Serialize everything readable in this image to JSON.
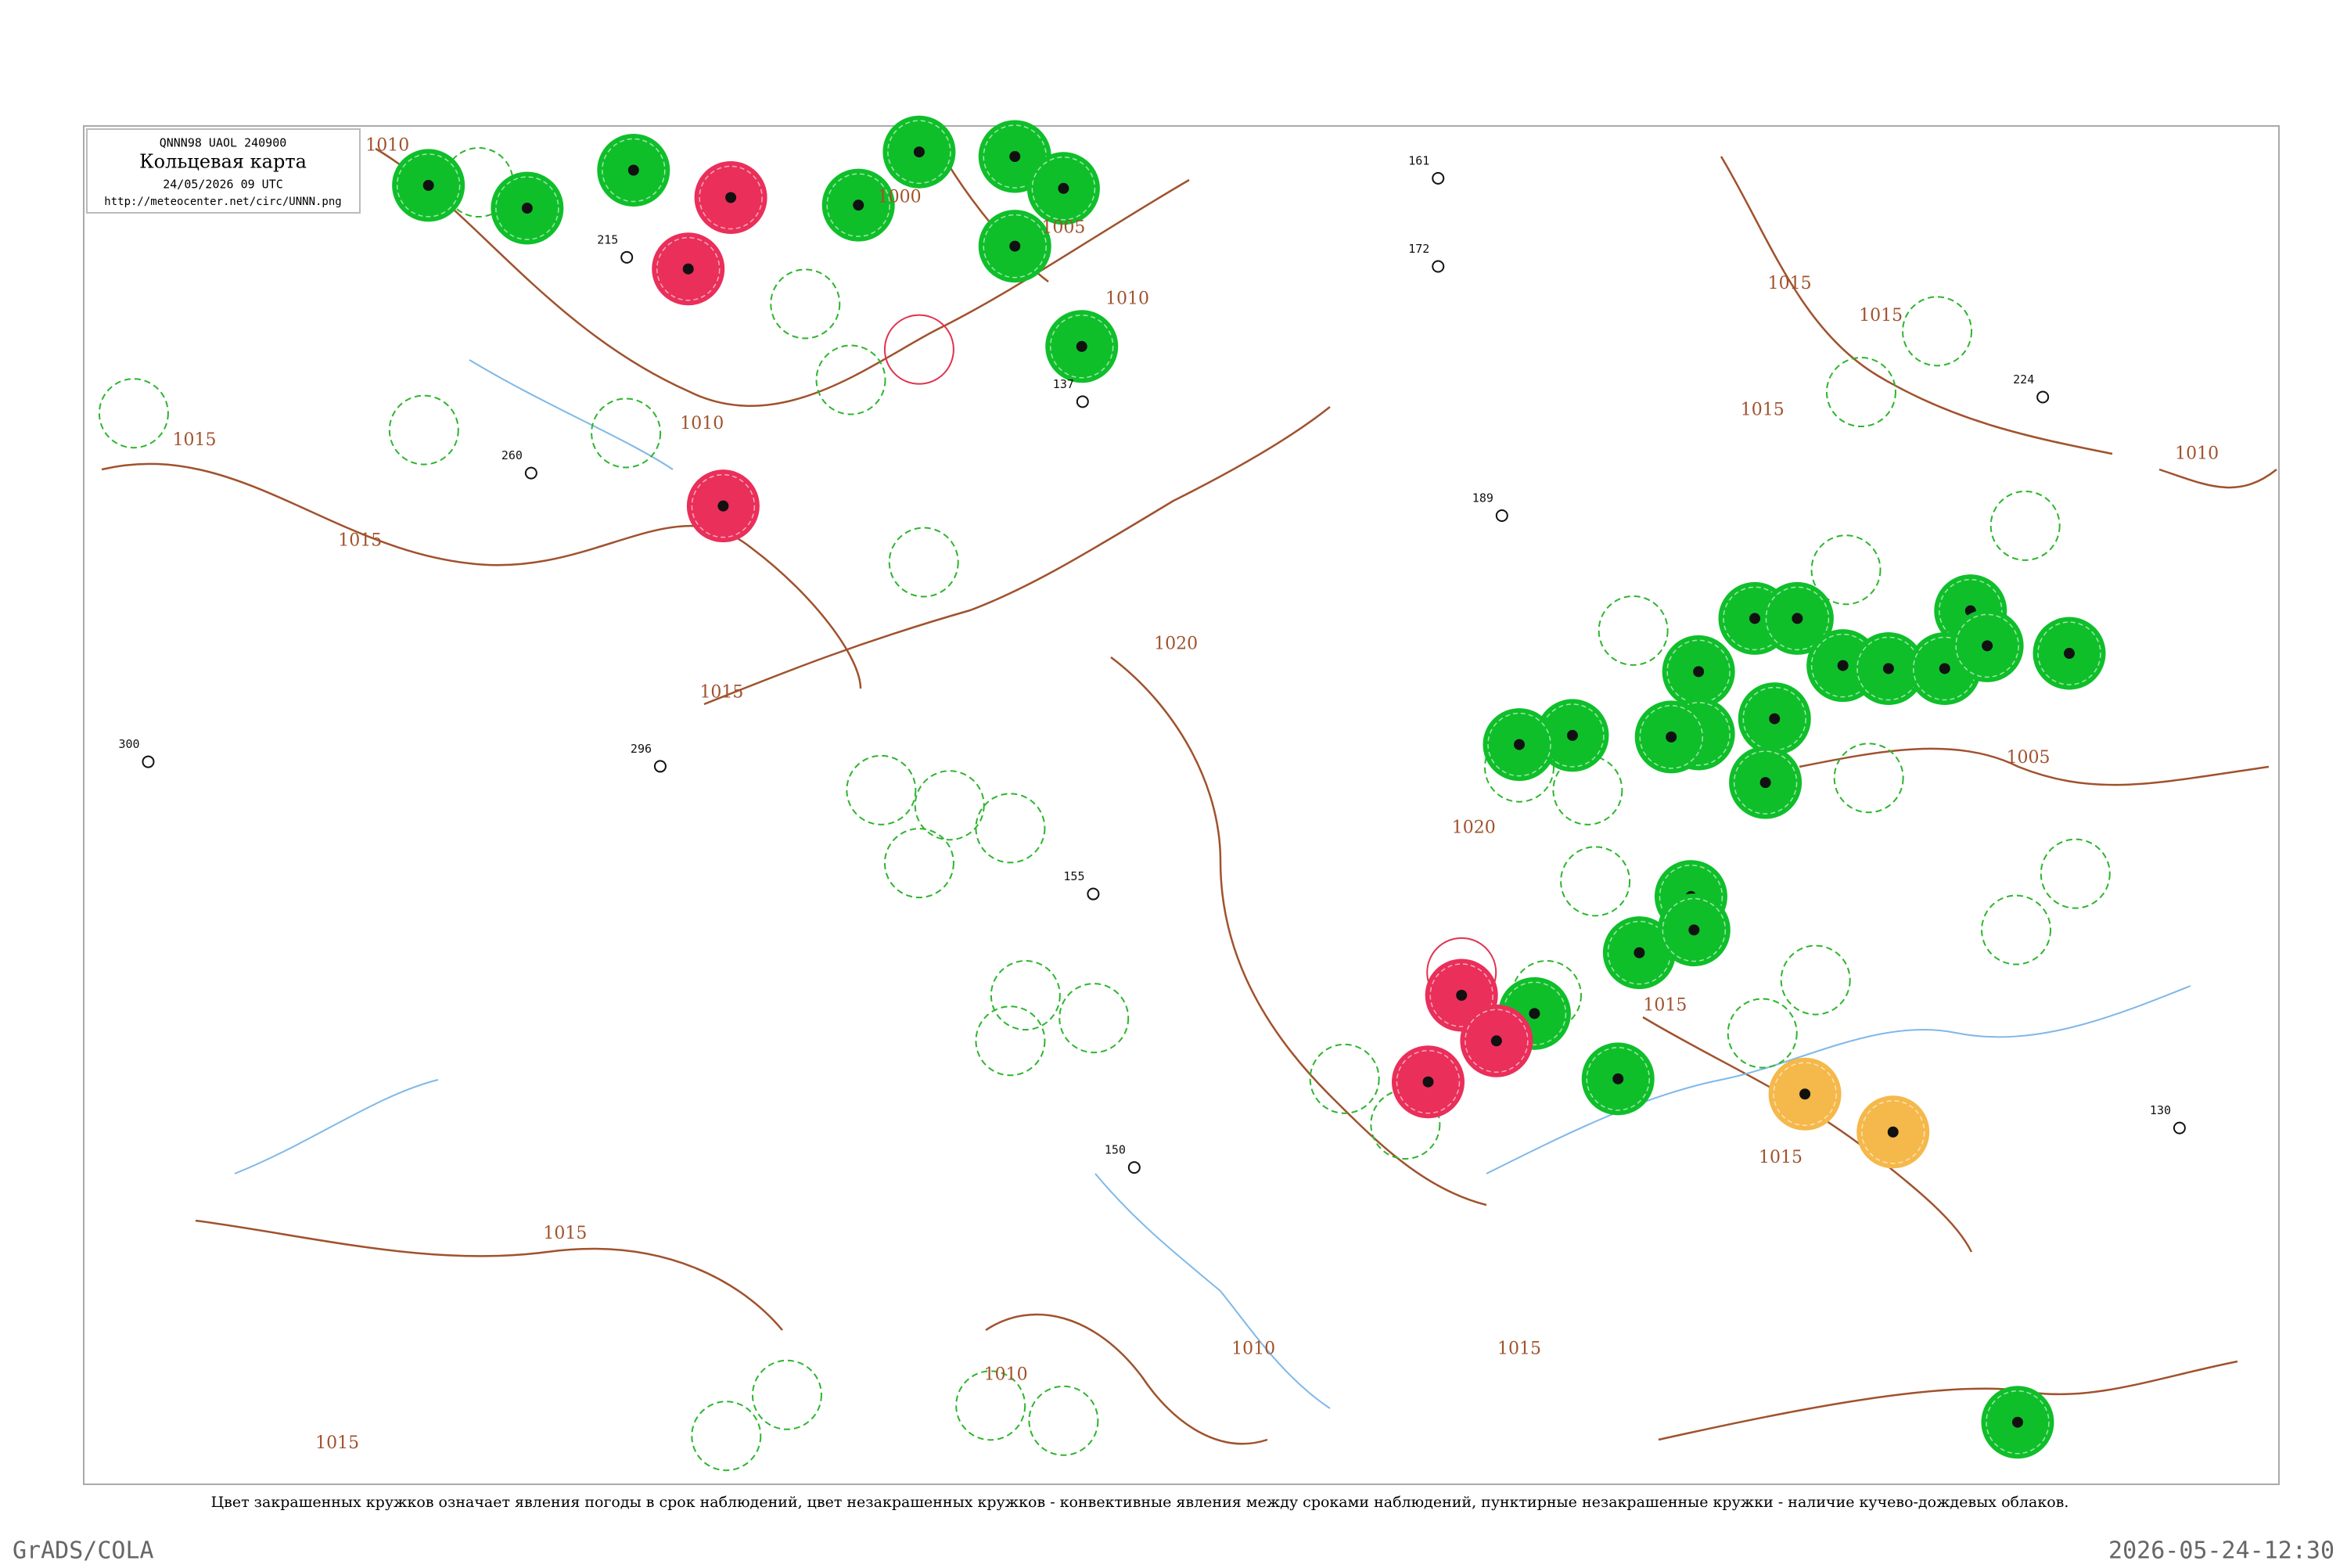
{
  "header": {
    "code": "QNNN98  UAOL  240900",
    "title": "Кольцевая карта",
    "datetime": "24/05/2026 09 UTC",
    "url": "http://meteocenter.net/circ/UNNN.png"
  },
  "isobar_labels": [
    "1010",
    "1000",
    "1005",
    "1010",
    "1010",
    "1015",
    "1015",
    "1015",
    "1020",
    "1020",
    "1015",
    "1015",
    "1015",
    "1010",
    "1005",
    "1015",
    "1015",
    "1015",
    "1015",
    "1010",
    "1010",
    "1015"
  ],
  "station_labels": [
    "215",
    "150",
    "161",
    "172",
    "137",
    "189",
    "155",
    "260",
    "296",
    "300",
    "224",
    "130"
  ],
  "caption": "Цвет закрашенных кружков означает явления погоды в срок наблюдений, цвет незакрашенных кружков - конвективные явления между сроками наблюдений, пунктирные незакрашенные кружки - наличие кучево-дождевых облаков.",
  "footer": {
    "left": "GrADS/COLA",
    "right": "2026-05-24-12:30"
  }
}
